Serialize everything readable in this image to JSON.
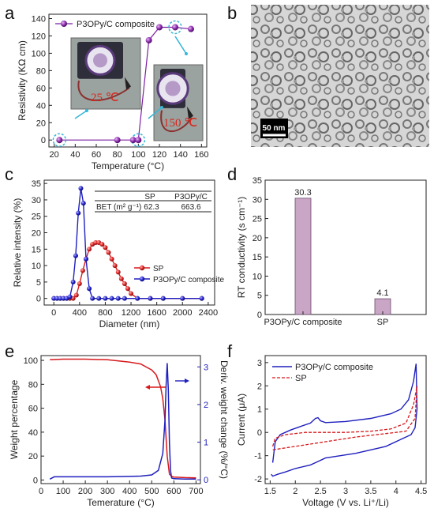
{
  "panel_labels": {
    "a": "a",
    "b": "b",
    "c": "c",
    "d": "d",
    "e": "e",
    "f": "f"
  },
  "colors": {
    "purple": "#7b1fa2",
    "red": "#d7191c",
    "blue": "#1f1fbf",
    "bar": "#c9a6c6",
    "cyan": "#38b6d8",
    "pink_text": "#d9261c"
  },
  "chart_data": [
    {
      "id": "a",
      "type": "scatter",
      "xlabel": "Temperature (°C)",
      "ylabel": "Resistivity (KΩ cm)",
      "xlim": [
        15,
        165
      ],
      "ylim": [
        -8,
        145
      ],
      "xticks": [
        20,
        40,
        60,
        80,
        100,
        120,
        140,
        160
      ],
      "yticks": [
        0,
        20,
        40,
        60,
        80,
        100,
        120,
        140
      ],
      "series": [
        {
          "name": "P3OPy/C composite",
          "x": [
            25,
            80,
            95,
            100,
            110,
            120,
            135,
            150
          ],
          "y": [
            0,
            0,
            0,
            0,
            115,
            130,
            130,
            128
          ]
        }
      ],
      "highlighted_x": [
        25,
        100,
        135
      ],
      "annotations": [
        "25 ℃",
        "150 ℃"
      ]
    },
    {
      "id": "b",
      "type": "image",
      "scale_bar": "50 nm"
    },
    {
      "id": "c",
      "type": "line",
      "xlabel": "Diameter (nm)",
      "ylabel": "Relative intensity (%)",
      "xlim": [
        -150,
        2500
      ],
      "ylim": [
        -2,
        36
      ],
      "xticks": [
        0,
        400,
        800,
        1200,
        1600,
        2000,
        2400
      ],
      "yticks": [
        0,
        5,
        10,
        15,
        20,
        25,
        30,
        35
      ],
      "series": [
        {
          "name": "SP",
          "x": [
            0,
            50,
            100,
            150,
            200,
            250,
            300,
            350,
            400,
            450,
            500,
            550,
            600,
            650,
            700,
            750,
            800,
            850,
            900,
            950,
            1000,
            1050,
            1100,
            1150,
            1200,
            1300,
            1500,
            1700,
            2000,
            2300
          ],
          "y": [
            0,
            0,
            0,
            0,
            0,
            0,
            0,
            1,
            4.5,
            8.5,
            12,
            15,
            16.5,
            17,
            17,
            16.5,
            15.5,
            14,
            12,
            10,
            8,
            6,
            4.5,
            3,
            1.5,
            0,
            0,
            0,
            0,
            0
          ]
        },
        {
          "name": "P3OPy/C composite",
          "x": [
            0,
            50,
            100,
            150,
            200,
            250,
            300,
            340,
            380,
            420,
            460,
            500,
            550,
            600,
            700,
            800,
            900,
            1000,
            1100,
            1300,
            1500,
            1700,
            2000,
            2300
          ],
          "y": [
            0,
            0,
            0,
            0,
            0,
            0.5,
            5,
            13,
            26,
            33.5,
            29,
            12,
            3,
            0,
            0,
            0,
            0,
            0,
            0,
            0,
            0,
            0,
            0,
            0
          ]
        }
      ],
      "table": {
        "headers": [
          "",
          "SP",
          "P3OPy/C"
        ],
        "rows": [
          [
            "BET (m² g⁻¹)",
            "62.3",
            "663.6"
          ]
        ]
      }
    },
    {
      "id": "d",
      "type": "bar",
      "ylabel": "RT conductivity (s cm⁻¹)",
      "categories": [
        "P3OPy/C composite",
        "SP"
      ],
      "values": [
        30.3,
        4.1
      ],
      "data_labels": [
        "30.3",
        "4.1"
      ],
      "ylim": [
        0,
        35
      ],
      "yticks": [
        0,
        5,
        10,
        15,
        20,
        25,
        30,
        35
      ]
    },
    {
      "id": "e",
      "type": "line",
      "xlabel": "Temerature (°C)",
      "ylabel": "Weight percentage",
      "y2label": "Deriv. weight change (%/°C)",
      "xlim": [
        0,
        720
      ],
      "ylim": [
        -3,
        104
      ],
      "y2lim": [
        -0.1,
        3.3
      ],
      "xticks": [
        0,
        100,
        200,
        300,
        400,
        500,
        600,
        700
      ],
      "yticks": [
        0,
        20,
        40,
        60,
        80,
        100
      ],
      "y2ticks": [
        0,
        1,
        2,
        3
      ],
      "series": [
        {
          "name": "Weight percentage",
          "axis": "left",
          "x": [
            40,
            100,
            200,
            300,
            400,
            450,
            500,
            520,
            540,
            550,
            560,
            570,
            580,
            590,
            600,
            650,
            700
          ],
          "y": [
            100.5,
            101,
            101,
            100.5,
            98.5,
            97,
            92,
            88,
            78,
            68,
            50,
            20,
            5,
            3,
            2.5,
            2,
            1.8
          ]
        },
        {
          "name": "Deriv. weight change",
          "axis": "right",
          "x": [
            40,
            60,
            100,
            200,
            300,
            400,
            450,
            500,
            530,
            550,
            560,
            565,
            570,
            575,
            580,
            585,
            590,
            600,
            650,
            700
          ],
          "y": [
            0.02,
            0.08,
            0.08,
            0.08,
            0.08,
            0.09,
            0.1,
            0.13,
            0.25,
            0.7,
            1.6,
            2.5,
            3.1,
            2.4,
            1.0,
            0.25,
            0.05,
            0.03,
            0.02,
            0.02
          ]
        }
      ]
    },
    {
      "id": "f",
      "type": "line",
      "xlabel": "Voltage (V vs. Li⁺/Li)",
      "ylabel": "Current (μA)",
      "xlim": [
        1.4,
        4.6
      ],
      "ylim": [
        -2.2,
        3.3
      ],
      "xticks": [
        1.5,
        2.0,
        2.5,
        3.0,
        3.5,
        4.0,
        4.5
      ],
      "yticks": [
        -2,
        -1,
        0,
        1,
        2,
        3
      ],
      "series": [
        {
          "name": "P3OPy/C composite",
          "x": [
            1.55,
            1.6,
            1.7,
            1.9,
            2.1,
            2.3,
            2.4,
            2.45,
            2.5,
            2.6,
            3.0,
            3.5,
            3.9,
            4.1,
            4.25,
            4.35,
            4.4,
            4.42,
            4.38,
            4.3,
            4.1,
            3.8,
            3.2,
            2.6,
            2.4,
            2.3,
            2.0,
            1.8,
            1.65,
            1.55,
            1.52
          ],
          "y": [
            -1.3,
            -0.4,
            -0.1,
            0.1,
            0.25,
            0.4,
            0.6,
            0.63,
            0.5,
            0.42,
            0.47,
            0.6,
            0.8,
            1.0,
            1.4,
            2.2,
            2.95,
            1.0,
            0.2,
            -0.1,
            -0.3,
            -0.6,
            -0.9,
            -1.1,
            -1.3,
            -1.4,
            -1.55,
            -1.7,
            -1.8,
            -1.88,
            -1.8
          ]
        },
        {
          "name": "SP",
          "x": [
            1.55,
            1.6,
            1.8,
            2.2,
            2.6,
            3.0,
            3.5,
            3.9,
            4.2,
            4.35,
            4.42,
            4.38,
            4.2,
            3.8,
            3.2,
            2.6,
            2.0,
            1.7,
            1.55
          ],
          "y": [
            -0.6,
            -0.25,
            -0.1,
            0.0,
            0.0,
            0.0,
            0.05,
            0.15,
            0.4,
            1.2,
            2.0,
            0.6,
            0.05,
            -0.05,
            -0.2,
            -0.4,
            -0.6,
            -0.7,
            -0.75
          ]
        }
      ]
    }
  ]
}
